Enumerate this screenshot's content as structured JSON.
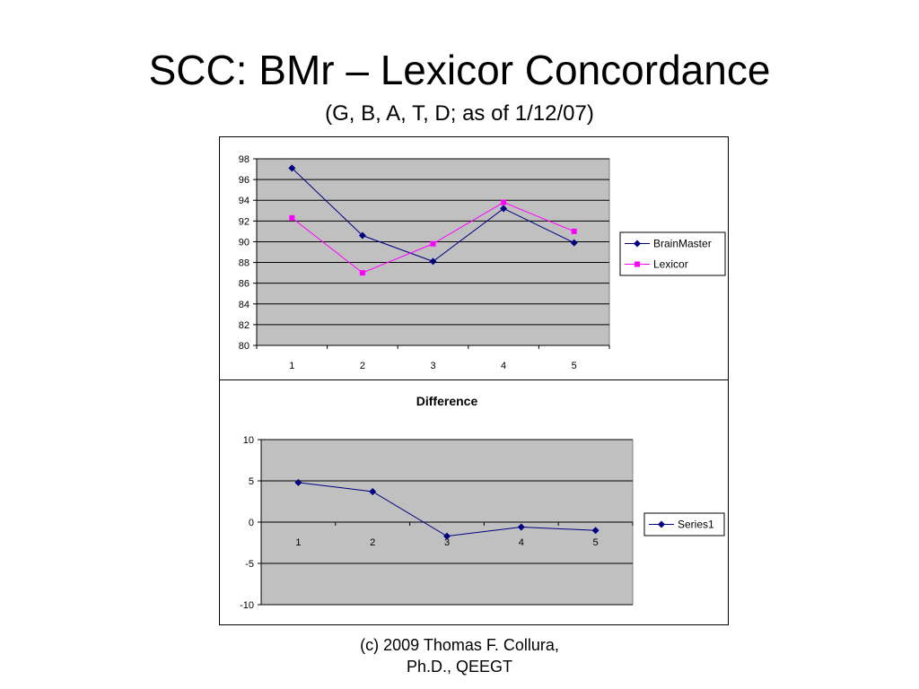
{
  "slide": {
    "title": "SCC: BMr – Lexicor Concordance",
    "subtitle": "(G, B, A, T, D; as of 1/12/07)",
    "footer_line1": "(c) 2009 Thomas F. Collura,",
    "footer_line2": "Ph.D., QEEGT"
  },
  "chart_data": [
    {
      "type": "line",
      "title": "",
      "xlabel": "",
      "ylabel": "",
      "categories": [
        "1",
        "2",
        "3",
        "4",
        "5"
      ],
      "ylim": [
        80,
        98
      ],
      "yticks": [
        80,
        82,
        84,
        86,
        88,
        90,
        92,
        94,
        96,
        98
      ],
      "grid": true,
      "legend": "right",
      "plot_background": "#c0c0c0",
      "series": [
        {
          "name": "BrainMaster",
          "values": [
            97.1,
            90.6,
            88.1,
            93.2,
            89.9
          ],
          "color": "#000080",
          "marker": "diamond"
        },
        {
          "name": "Lexicor",
          "values": [
            92.3,
            87.0,
            89.8,
            93.8,
            91.0
          ],
          "color": "#ff00ff",
          "marker": "square"
        }
      ]
    },
    {
      "type": "line",
      "title": "Difference",
      "xlabel": "",
      "ylabel": "",
      "categories": [
        "1",
        "2",
        "3",
        "4",
        "5"
      ],
      "ylim": [
        -10,
        10
      ],
      "yticks": [
        -10,
        -5,
        0,
        5,
        10
      ],
      "grid": true,
      "legend": "right",
      "plot_background": "#c0c0c0",
      "series": [
        {
          "name": "Series1",
          "values": [
            4.8,
            3.7,
            -1.7,
            -0.6,
            -1.0
          ],
          "color": "#000080",
          "marker": "diamond"
        }
      ]
    }
  ]
}
